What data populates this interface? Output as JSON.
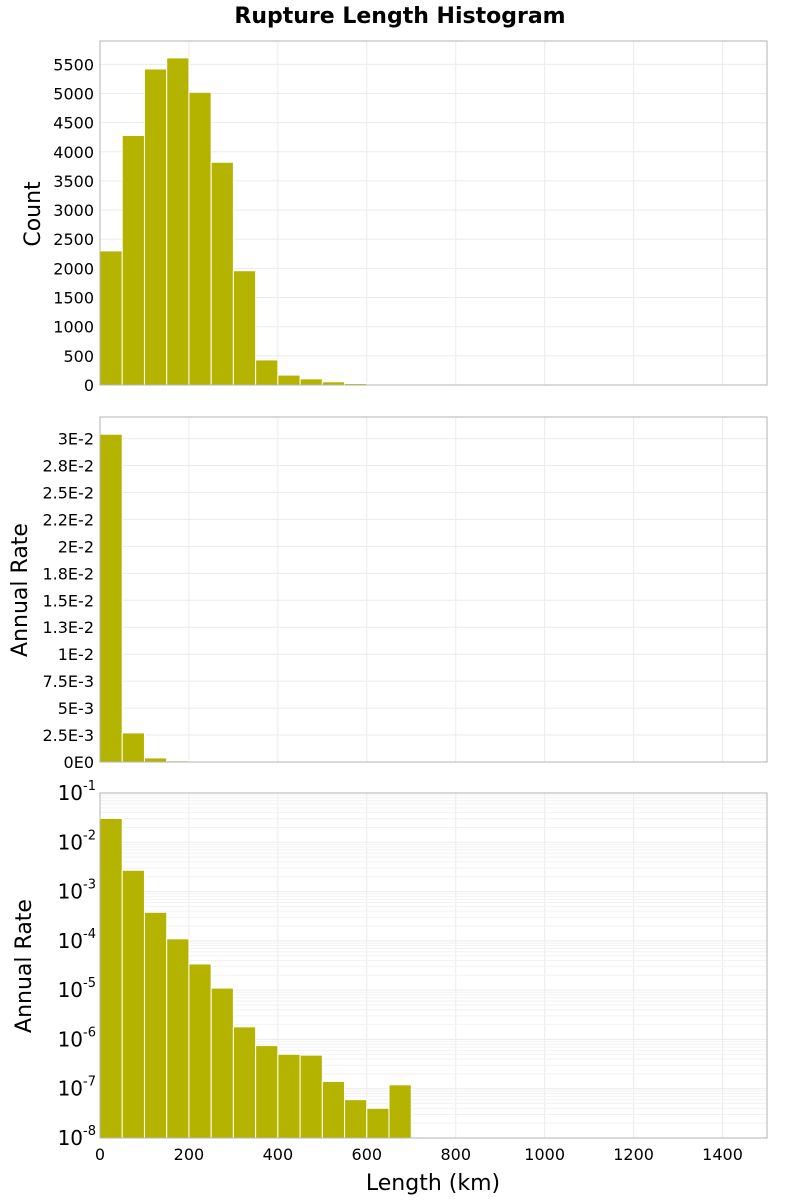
{
  "title": "Rupture Length Histogram",
  "colors": {
    "bar": "#b4b400",
    "grid": "#ebebeb",
    "frame": "#b3b3b3"
  },
  "chart_data": [
    {
      "type": "bar",
      "ylabel": "Count",
      "xlim": [
        0,
        1500
      ],
      "ylim": [
        0,
        5900
      ],
      "yticks": [
        0,
        500,
        1000,
        1500,
        2000,
        2500,
        3000,
        3500,
        4000,
        4500,
        5000,
        5500
      ],
      "ytick_labels": [
        "0",
        "500",
        "1000",
        "1500",
        "2000",
        "2500",
        "3000",
        "3500",
        "4000",
        "4500",
        "5000",
        "5500"
      ],
      "bin_width": 50,
      "bin_starts": [
        0,
        50,
        100,
        150,
        200,
        250,
        300,
        350,
        400,
        450,
        500,
        550,
        600,
        650,
        700
      ],
      "values": [
        2300,
        4280,
        5420,
        5610,
        5020,
        3820,
        1960,
        430,
        170,
        105,
        55,
        25,
        15,
        8,
        3
      ]
    },
    {
      "type": "bar",
      "ylabel": "Annual Rate",
      "xlim": [
        0,
        1500
      ],
      "ylim": [
        0,
        0.032
      ],
      "yticks": [
        0,
        0.0025,
        0.005,
        0.0075,
        0.01,
        0.0125,
        0.015,
        0.0175,
        0.02,
        0.0225,
        0.025,
        0.0275,
        0.03
      ],
      "ytick_labels": [
        "0E0",
        "2.5E-3",
        "5E-3",
        "7.5E-3",
        "1E-2",
        "1.3E-2",
        "1.5E-2",
        "1.8E-2",
        "2E-2",
        "2.2E-2",
        "2.5E-2",
        "2.8E-2",
        "3E-2"
      ],
      "bin_width": 50,
      "bin_starts": [
        0,
        50,
        100,
        150,
        200,
        250,
        300,
        350,
        400,
        450,
        500,
        550,
        600,
        650
      ],
      "values": [
        0.0304,
        0.0027,
        0.00038,
        0.00011,
        3.4e-05,
        1.1e-05,
        1.8e-06,
        7.5e-07,
        5e-07,
        4.8e-07,
        1.4e-07,
        6e-08,
        4e-08,
        1.2e-07
      ]
    },
    {
      "type": "bar",
      "scale": "log",
      "ylabel": "Annual Rate",
      "xlabel": "Length (km)",
      "xlim": [
        0,
        1500
      ],
      "ylim": [
        1e-08,
        0.1
      ],
      "ytick_exponents": [
        -1,
        -2,
        -3,
        -4,
        -5,
        -6,
        -7,
        -8
      ],
      "ytick_base": "10",
      "xticks": [
        0,
        200,
        400,
        600,
        800,
        1000,
        1200,
        1400
      ],
      "xtick_labels": [
        "0",
        "200",
        "400",
        "600",
        "800",
        "1000",
        "1200",
        "1400"
      ],
      "bin_width": 50,
      "bin_starts": [
        0,
        50,
        100,
        150,
        200,
        250,
        300,
        350,
        400,
        450,
        500,
        550,
        600,
        650
      ],
      "values": [
        0.0304,
        0.0027,
        0.00038,
        0.00011,
        3.4e-05,
        1.1e-05,
        1.8e-06,
        7.5e-07,
        5e-07,
        4.8e-07,
        1.4e-07,
        6e-08,
        4e-08,
        1.2e-07
      ]
    }
  ]
}
